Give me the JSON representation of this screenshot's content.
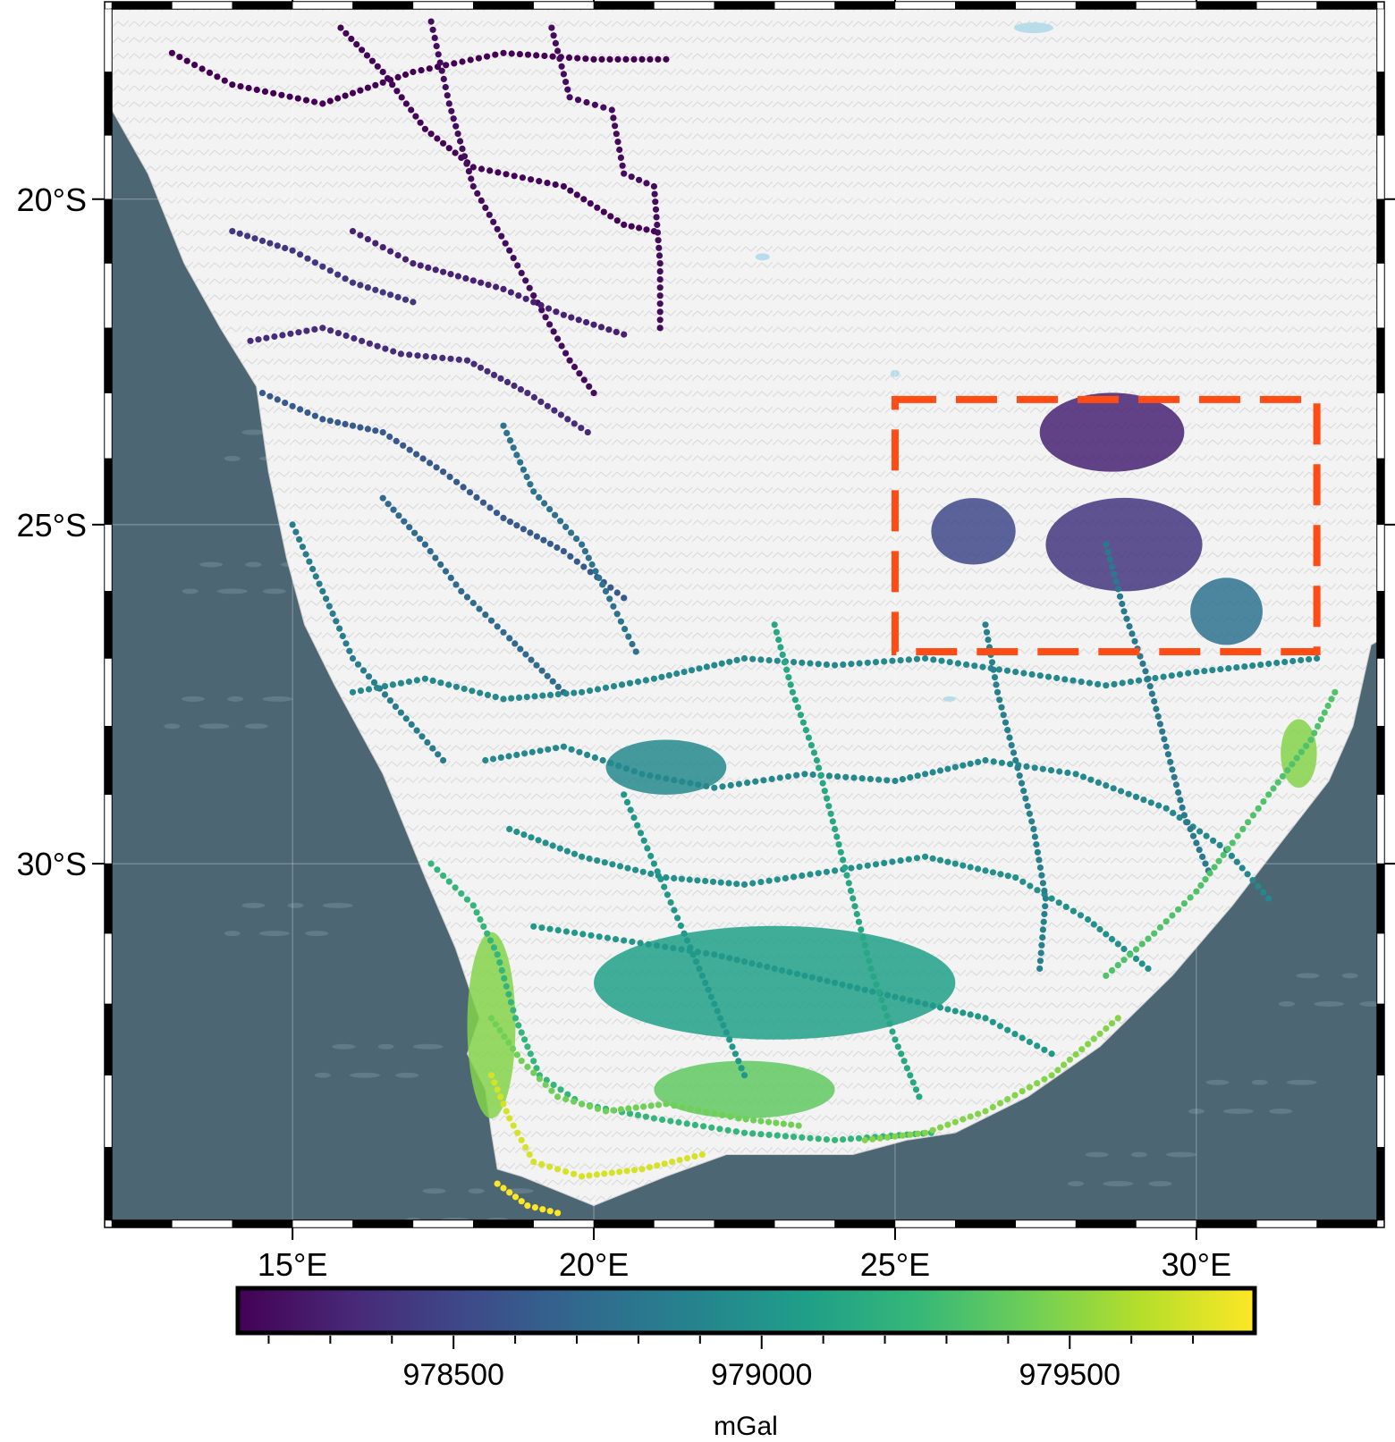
{
  "map": {
    "region": {
      "lon_min": 12,
      "lon_max": 33,
      "lat_min": -35,
      "lat_max": -17
    },
    "projection": "mercator",
    "land_color": "#f2f2f2",
    "ocean_color": "#4d6674",
    "lake_color": "#b9dceb",
    "frame_style": "fancy-checkered",
    "gridlines": true,
    "lon_ticks": [
      {
        "value": 15,
        "label": "15°E"
      },
      {
        "value": 20,
        "label": "20°E"
      },
      {
        "value": 25,
        "label": "25°E"
      },
      {
        "value": 30,
        "label": "30°E"
      }
    ],
    "lat_ticks": [
      {
        "value": -20,
        "label": "20°S"
      },
      {
        "value": -25,
        "label": "25°S"
      },
      {
        "value": -30,
        "label": "30°S"
      }
    ],
    "study_area_box": {
      "lon_min": 25,
      "lon_max": 32,
      "lat_min": -26.9,
      "lat_max": -23.1,
      "color": "#ff4b14",
      "style": "dashed"
    },
    "gravity_points": {
      "description_units": "mGal",
      "colormap": "viridis",
      "value_range": [
        978150,
        979750
      ],
      "survey_routes": [
        {
          "value": 978150,
          "points": [
            [
              13.0,
              -17.7
            ],
            [
              14.0,
              -18.2
            ],
            [
              15.5,
              -18.5
            ],
            [
              17.0,
              -18.0
            ],
            [
              18.5,
              -17.7
            ],
            [
              20.0,
              -17.8
            ],
            [
              21.2,
              -17.8
            ]
          ]
        },
        {
          "value": 978170,
          "points": [
            [
              15.8,
              -17.3
            ],
            [
              16.5,
              -18.0
            ],
            [
              17.2,
              -18.9
            ],
            [
              18.0,
              -19.5
            ],
            [
              19.5,
              -19.8
            ],
            [
              20.5,
              -20.4
            ],
            [
              21.0,
              -20.5
            ]
          ]
        },
        {
          "value": 978200,
          "points": [
            [
              17.3,
              -17.2
            ],
            [
              17.6,
              -18.5
            ],
            [
              18.0,
              -19.8
            ],
            [
              18.6,
              -20.8
            ],
            [
              19.0,
              -21.5
            ],
            [
              19.6,
              -22.5
            ],
            [
              20.0,
              -23.0
            ]
          ]
        },
        {
          "value": 978200,
          "points": [
            [
              19.3,
              -17.3
            ],
            [
              19.6,
              -18.4
            ],
            [
              20.3,
              -18.6
            ],
            [
              20.5,
              -19.6
            ],
            [
              21.0,
              -19.8
            ],
            [
              21.1,
              -21.0
            ],
            [
              21.1,
              -22.0
            ]
          ]
        },
        {
          "value": 978300,
          "points": [
            [
              16.0,
              -20.5
            ],
            [
              17.0,
              -21.0
            ],
            [
              18.5,
              -21.4
            ],
            [
              19.5,
              -21.8
            ],
            [
              20.5,
              -22.1
            ]
          ]
        },
        {
          "value": 978350,
          "points": [
            [
              14.3,
              -22.2
            ],
            [
              15.5,
              -22.0
            ],
            [
              16.8,
              -22.4
            ],
            [
              17.9,
              -22.5
            ],
            [
              18.9,
              -23.0
            ],
            [
              19.9,
              -23.6
            ]
          ]
        },
        {
          "value": 978400,
          "points": [
            [
              14.0,
              -20.5
            ],
            [
              15.0,
              -20.8
            ],
            [
              16.0,
              -21.3
            ],
            [
              17.0,
              -21.6
            ]
          ]
        },
        {
          "value": 978600,
          "points": [
            [
              14.5,
              -23.0
            ],
            [
              15.5,
              -23.4
            ],
            [
              16.5,
              -23.6
            ],
            [
              17.5,
              -24.2
            ],
            [
              18.5,
              -24.9
            ],
            [
              19.5,
              -25.4
            ],
            [
              20.5,
              -26.1
            ]
          ]
        },
        {
          "value": 978700,
          "points": [
            [
              16.5,
              -24.6
            ],
            [
              17.2,
              -25.3
            ],
            [
              17.8,
              -26.0
            ],
            [
              18.6,
              -26.7
            ],
            [
              19.5,
              -27.5
            ]
          ]
        },
        {
          "value": 978750,
          "points": [
            [
              18.5,
              -23.5
            ],
            [
              19.0,
              -24.5
            ],
            [
              19.8,
              -25.3
            ],
            [
              20.2,
              -26.0
            ],
            [
              20.7,
              -26.9
            ]
          ]
        },
        {
          "value": 978820,
          "points": [
            [
              15.0,
              -25.0
            ],
            [
              15.5,
              -26.0
            ],
            [
              16.0,
              -27.0
            ],
            [
              16.8,
              -27.8
            ],
            [
              17.5,
              -28.5
            ]
          ]
        },
        {
          "value": 978900,
          "points": [
            [
              16.0,
              -27.5
            ],
            [
              17.2,
              -27.3
            ],
            [
              18.5,
              -27.6
            ],
            [
              19.8,
              -27.5
            ],
            [
              21.0,
              -27.3
            ],
            [
              22.5,
              -27.0
            ],
            [
              24.0,
              -27.1
            ],
            [
              25.5,
              -27.0
            ],
            [
              27.0,
              -27.2
            ],
            [
              28.5,
              -27.4
            ],
            [
              30.0,
              -27.2
            ],
            [
              32.0,
              -27.0
            ]
          ]
        },
        {
          "value": 978900,
          "points": [
            [
              18.2,
              -28.5
            ],
            [
              19.5,
              -28.3
            ],
            [
              20.8,
              -28.7
            ],
            [
              22.0,
              -28.9
            ],
            [
              23.5,
              -28.7
            ],
            [
              25.0,
              -28.8
            ],
            [
              26.5,
              -28.5
            ],
            [
              28.0,
              -28.7
            ],
            [
              29.5,
              -29.2
            ],
            [
              30.5,
              -29.8
            ],
            [
              31.2,
              -30.5
            ]
          ]
        },
        {
          "value": 978950,
          "points": [
            [
              18.6,
              -29.5
            ],
            [
              19.8,
              -29.9
            ],
            [
              21.2,
              -30.2
            ],
            [
              22.5,
              -30.3
            ],
            [
              24.0,
              -30.1
            ],
            [
              25.5,
              -29.9
            ],
            [
              27.0,
              -30.2
            ],
            [
              28.2,
              -30.8
            ],
            [
              29.2,
              -31.5
            ]
          ]
        },
        {
          "value": 979000,
          "points": [
            [
              19.0,
              -30.9
            ],
            [
              20.5,
              -31.1
            ],
            [
              22.0,
              -31.3
            ],
            [
              23.5,
              -31.6
            ],
            [
              25.0,
              -31.9
            ],
            [
              26.5,
              -32.2
            ],
            [
              27.6,
              -32.7
            ]
          ]
        },
        {
          "value": 979000,
          "points": [
            [
              20.5,
              -29.0
            ],
            [
              21.0,
              -30.0
            ],
            [
              21.5,
              -31.0
            ],
            [
              22.0,
              -32.0
            ],
            [
              22.5,
              -33.0
            ]
          ]
        },
        {
          "value": 979100,
          "points": [
            [
              23.0,
              -26.5
            ],
            [
              23.3,
              -27.5
            ],
            [
              23.7,
              -28.5
            ],
            [
              24.0,
              -29.5
            ],
            [
              24.3,
              -30.5
            ],
            [
              24.6,
              -31.5
            ],
            [
              25.0,
              -32.5
            ],
            [
              25.4,
              -33.3
            ]
          ]
        },
        {
          "value": 978850,
          "points": [
            [
              26.5,
              -26.5
            ],
            [
              26.7,
              -27.5
            ],
            [
              27.0,
              -28.5
            ],
            [
              27.3,
              -29.5
            ],
            [
              27.5,
              -30.5
            ],
            [
              27.4,
              -31.5
            ]
          ]
        },
        {
          "value": 978800,
          "points": [
            [
              28.5,
              -25.3
            ],
            [
              28.8,
              -26.3
            ],
            [
              29.2,
              -27.3
            ],
            [
              29.5,
              -28.3
            ],
            [
              29.8,
              -29.3
            ],
            [
              30.2,
              -30.1
            ]
          ]
        },
        {
          "value": 979200,
          "points": [
            [
              17.3,
              -30.0
            ],
            [
              18.0,
              -30.6
            ],
            [
              18.4,
              -31.3
            ],
            [
              18.7,
              -32.2
            ],
            [
              19.1,
              -33.0
            ],
            [
              19.8,
              -33.4
            ],
            [
              21.0,
              -33.6
            ],
            [
              22.5,
              -33.8
            ],
            [
              24.0,
              -33.9
            ],
            [
              25.6,
              -33.8
            ]
          ]
        },
        {
          "value": 979300,
          "points": [
            [
              28.5,
              -31.6
            ],
            [
              29.3,
              -31.0
            ],
            [
              30.0,
              -30.4
            ],
            [
              30.6,
              -29.7
            ],
            [
              31.2,
              -29.0
            ],
            [
              31.9,
              -28.2
            ],
            [
              32.3,
              -27.5
            ]
          ]
        },
        {
          "value": 979400,
          "points": [
            [
              18.3,
              -32.2
            ],
            [
              18.8,
              -32.8
            ],
            [
              19.4,
              -33.3
            ],
            [
              20.2,
              -33.5
            ],
            [
              21.2,
              -33.4
            ],
            [
              22.4,
              -33.6
            ],
            [
              23.4,
              -33.7
            ]
          ]
        },
        {
          "value": 979450,
          "points": [
            [
              24.5,
              -33.9
            ],
            [
              25.5,
              -33.8
            ],
            [
              26.5,
              -33.5
            ],
            [
              27.6,
              -33.0
            ],
            [
              28.7,
              -32.2
            ]
          ]
        },
        {
          "value": 979650,
          "points": [
            [
              18.3,
              -33.0
            ],
            [
              18.6,
              -33.6
            ],
            [
              19.0,
              -34.2
            ],
            [
              19.8,
              -34.4
            ],
            [
              20.8,
              -34.3
            ],
            [
              21.8,
              -34.1
            ]
          ]
        },
        {
          "value": 979750,
          "points": [
            [
              18.4,
              -34.5
            ],
            [
              18.9,
              -34.8
            ],
            [
              19.4,
              -34.9
            ]
          ]
        }
      ],
      "dense_clusters": [
        {
          "value": 978300,
          "lon": 28.6,
          "lat": -23.6,
          "rlon": 1.2,
          "rlat": 0.6
        },
        {
          "value": 978400,
          "lon": 28.8,
          "lat": -25.3,
          "rlon": 1.3,
          "rlat": 0.7
        },
        {
          "value": 978500,
          "lon": 26.3,
          "lat": -25.1,
          "rlon": 0.7,
          "rlat": 0.5
        },
        {
          "value": 978750,
          "lon": 30.5,
          "lat": -26.3,
          "rlon": 0.6,
          "rlat": 0.5
        },
        {
          "value": 978900,
          "lon": 21.2,
          "lat": -28.6,
          "rlon": 1.0,
          "rlat": 0.4
        },
        {
          "value": 979050,
          "lon": 23.0,
          "lat": -31.7,
          "rlon": 3.0,
          "rlat": 0.8
        },
        {
          "value": 979450,
          "lon": 18.3,
          "lat": -32.3,
          "rlon": 0.4,
          "rlat": 1.3
        },
        {
          "value": 979350,
          "lon": 22.5,
          "lat": -33.2,
          "rlon": 1.5,
          "rlat": 0.4
        },
        {
          "value": 979450,
          "lon": 31.7,
          "lat": -28.4,
          "rlon": 0.3,
          "rlat": 0.5
        }
      ]
    }
  },
  "colorbar": {
    "min": 978150,
    "max": 979800,
    "major_ticks": [
      {
        "value": 978500,
        "label": "978500"
      },
      {
        "value": 979000,
        "label": "979000"
      },
      {
        "value": 979500,
        "label": "979500"
      }
    ],
    "minor_ticks": [
      978200,
      978300,
      978400,
      978600,
      978700,
      978800,
      978900,
      979100,
      979200,
      979300,
      979400,
      979600,
      979700
    ],
    "unit_label": "mGal",
    "colormap": [
      "#440154",
      "#482878",
      "#3e4989",
      "#31688e",
      "#26828e",
      "#1f9e89",
      "#35b779",
      "#6ece58",
      "#b5de2b",
      "#fde725"
    ]
  }
}
